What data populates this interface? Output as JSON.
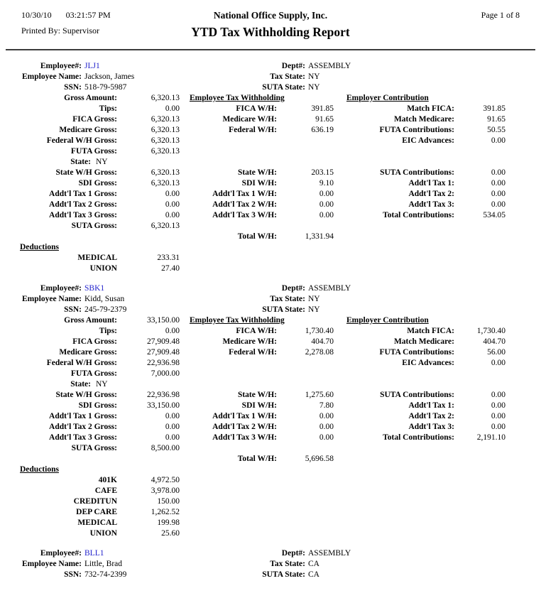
{
  "colors": {
    "employee_link": "#2222cc",
    "divider": "#3c3c3c"
  },
  "page": {
    "date": "10/30/10",
    "time": "03:21:57 PM",
    "printed_by_label": "Printed By:",
    "printed_by": "Supervisor",
    "company": "National Office Supply, Inc.",
    "title": "YTD Tax Withholding Report",
    "page_info": "Page 1 of 8"
  },
  "labels": {
    "employee_no": "Employee#:",
    "employee_name": "Employee Name:",
    "ssn": "SSN:",
    "dept": "Dept#:",
    "tax_state": "Tax State:",
    "suta_state": "SUTA State:",
    "gross_amount": "Gross Amount:",
    "tips": "Tips:",
    "fica_gross": "FICA Gross:",
    "medicare_gross": "Medicare Gross:",
    "federal_wh_gross": "Federal W/H Gross:",
    "futa_gross": "FUTA Gross:",
    "state": "State:",
    "state_wh_gross": "State W/H Gross:",
    "sdi_gross": "SDI Gross:",
    "addtl1_gross": "Addt'l Tax 1 Gross:",
    "addtl2_gross": "Addt'l Tax 2 Gross:",
    "addtl3_gross": "Addt'l Tax 3 Gross:",
    "suta_gross": "SUTA Gross:",
    "emp_tax_withholding": "Employee Tax Withholding",
    "fica_wh": "FICA W/H:",
    "medicare_wh": "Medicare W/H:",
    "federal_wh": "Federal W/H:",
    "state_wh": "State W/H:",
    "sdi_wh": "SDI W/H:",
    "addtl1_wh": "Addt'l Tax 1 W/H:",
    "addtl2_wh": "Addt'l Tax 2 W/H:",
    "addtl3_wh": "Addt'l Tax 3 W/H:",
    "total_wh": "Total W/H:",
    "employer_contribution": "Employer Contribution",
    "match_fica": "Match FICA:",
    "match_medicare": "Match Medicare:",
    "futa_contrib": "FUTA Contributions:",
    "eic_advances": "EIC Advances:",
    "suta_contrib": "SUTA Contributions:",
    "addtl1": "Addt'l Tax 1:",
    "addtl2": "Addt'l Tax 2:",
    "addtl3": "Addt'l Tax 3:",
    "total_contrib": "Total Contributions:",
    "deductions": "Deductions"
  },
  "employees": [
    {
      "id": "JLJ1",
      "name": "Jackson, James",
      "ssn": "518-79-5987",
      "dept": "ASSEMBLY",
      "tax_state": "NY",
      "suta_state": "NY",
      "gross_amount": "6,320.13",
      "tips": "0.00",
      "fica_gross": "6,320.13",
      "medicare_gross": "6,320.13",
      "federal_wh_gross": "6,320.13",
      "futa_gross": "6,320.13",
      "state": "NY",
      "state_wh_gross": "6,320.13",
      "sdi_gross": "6,320.13",
      "addtl1_gross": "0.00",
      "addtl2_gross": "0.00",
      "addtl3_gross": "0.00",
      "suta_gross": "6,320.13",
      "fica_wh": "391.85",
      "medicare_wh": "91.65",
      "federal_wh": "636.19",
      "state_wh": "203.15",
      "sdi_wh": "9.10",
      "addtl1_wh": "0.00",
      "addtl2_wh": "0.00",
      "addtl3_wh": "0.00",
      "total_wh": "1,331.94",
      "match_fica": "391.85",
      "match_medicare": "91.65",
      "futa_contrib": "50.55",
      "eic_advances": "0.00",
      "suta_contrib": "0.00",
      "addtl1": "0.00",
      "addtl2": "0.00",
      "addtl3": "0.00",
      "total_contrib": "534.05",
      "deductions": [
        {
          "name": "MEDICAL",
          "amount": "233.31"
        },
        {
          "name": "UNION",
          "amount": "27.40"
        }
      ]
    },
    {
      "id": "SBK1",
      "name": "Kidd, Susan",
      "ssn": "245-79-2379",
      "dept": "ASSEMBLY",
      "tax_state": "NY",
      "suta_state": "NY",
      "gross_amount": "33,150.00",
      "tips": "0.00",
      "fica_gross": "27,909.48",
      "medicare_gross": "27,909.48",
      "federal_wh_gross": "22,936.98",
      "futa_gross": "7,000.00",
      "state": "NY",
      "state_wh_gross": "22,936.98",
      "sdi_gross": "33,150.00",
      "addtl1_gross": "0.00",
      "addtl2_gross": "0.00",
      "addtl3_gross": "0.00",
      "suta_gross": "8,500.00",
      "fica_wh": "1,730.40",
      "medicare_wh": "404.70",
      "federal_wh": "2,278.08",
      "state_wh": "1,275.60",
      "sdi_wh": "7.80",
      "addtl1_wh": "0.00",
      "addtl2_wh": "0.00",
      "addtl3_wh": "0.00",
      "total_wh": "5,696.58",
      "match_fica": "1,730.40",
      "match_medicare": "404.70",
      "futa_contrib": "56.00",
      "eic_advances": "0.00",
      "suta_contrib": "0.00",
      "addtl1": "0.00",
      "addtl2": "0.00",
      "addtl3": "0.00",
      "total_contrib": "2,191.10",
      "deductions": [
        {
          "name": "401K",
          "amount": "4,972.50"
        },
        {
          "name": "CAFE",
          "amount": "3,978.00"
        },
        {
          "name": "CREDITUN",
          "amount": "150.00"
        },
        {
          "name": "DEP CARE",
          "amount": "1,262.52"
        },
        {
          "name": "MEDICAL",
          "amount": "199.98"
        },
        {
          "name": "UNION",
          "amount": "25.60"
        }
      ]
    },
    {
      "id": "BLL1",
      "name": "Little, Brad",
      "ssn": "732-74-2399",
      "dept": "ASSEMBLY",
      "tax_state": "CA",
      "suta_state": "CA"
    }
  ]
}
